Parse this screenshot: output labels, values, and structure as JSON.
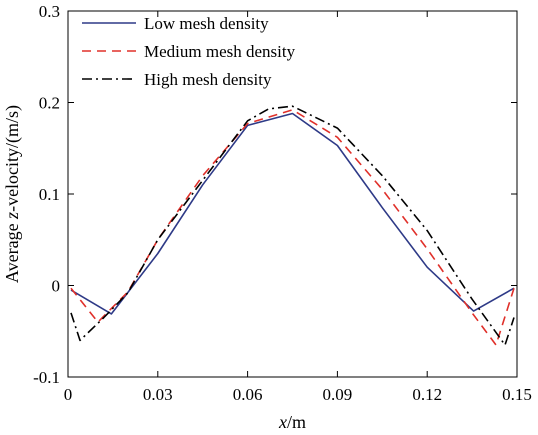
{
  "chart_data": {
    "type": "line",
    "xlabel_var": "x",
    "xlabel_unit": "/m",
    "ylabel_pre": "Average ",
    "ylabel_var": "z",
    "ylabel_post": "-velocity/(m/s)",
    "xlim": [
      0,
      0.15
    ],
    "ylim": [
      -0.1,
      0.3
    ],
    "x_ticks": [
      0,
      0.03,
      0.06,
      0.09,
      0.12,
      0.15
    ],
    "x_tick_labels": [
      "0",
      "0.03",
      "0.06",
      "0.09",
      "0.12",
      "0.15"
    ],
    "y_ticks": [
      -0.1,
      0,
      0.1,
      0.2,
      0.3
    ],
    "y_tick_labels": [
      "-0.1",
      "0",
      "0.1",
      "0.2",
      "0.3"
    ],
    "grid": false,
    "legend_position": "top-left",
    "series": [
      {
        "name": "Low mesh density",
        "color": "#2e3a87",
        "dash": "solid",
        "x": [
          0.001,
          0.0145,
          0.03,
          0.045,
          0.06,
          0.075,
          0.09,
          0.105,
          0.12,
          0.1355,
          0.149
        ],
        "y": [
          -0.005,
          -0.031,
          0.035,
          0.11,
          0.175,
          0.188,
          0.153,
          0.085,
          0.02,
          -0.028,
          -0.003
        ]
      },
      {
        "name": "Medium mesh density",
        "color": "#e0302a",
        "dash": "dashed",
        "x": [
          0.001,
          0.01,
          0.02,
          0.03,
          0.045,
          0.06,
          0.075,
          0.09,
          0.105,
          0.12,
          0.135,
          0.143,
          0.149
        ],
        "y": [
          -0.003,
          -0.04,
          -0.007,
          0.05,
          0.12,
          0.177,
          0.192,
          0.162,
          0.105,
          0.04,
          -0.03,
          -0.065,
          -0.003
        ]
      },
      {
        "name": "High mesh density",
        "color": "#000000",
        "dash": "dashdot",
        "x": [
          0.001,
          0.004,
          0.012,
          0.02,
          0.03,
          0.045,
          0.06,
          0.067,
          0.075,
          0.09,
          0.105,
          0.12,
          0.135,
          0.146,
          0.149
        ],
        "y": [
          -0.03,
          -0.06,
          -0.035,
          -0.008,
          0.05,
          0.115,
          0.18,
          0.193,
          0.196,
          0.172,
          0.12,
          0.06,
          -0.015,
          -0.065,
          -0.035
        ]
      }
    ]
  }
}
